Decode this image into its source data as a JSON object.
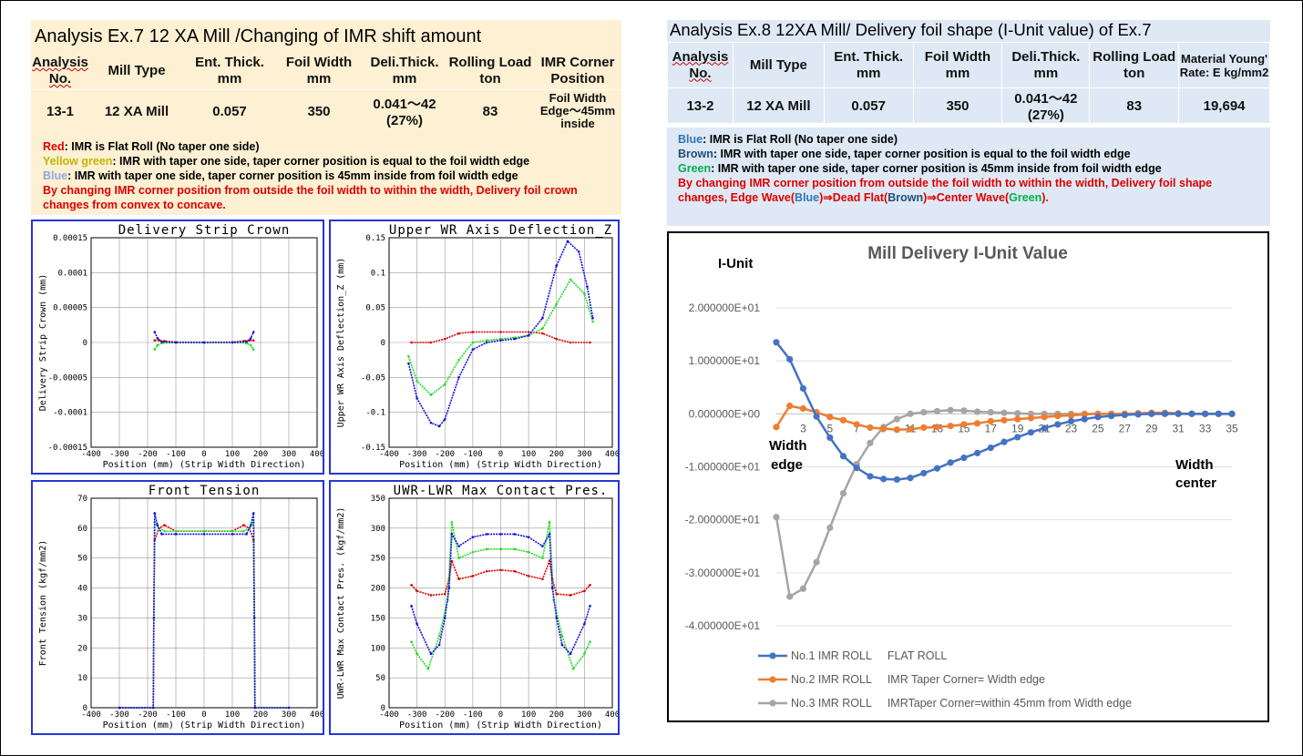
{
  "ex7": {
    "title": "Analysis Ex.7   12 XA Mill /Changing of IMR shift amount",
    "headers": [
      "Analysis No.",
      "Mill Type",
      "Ent. Thick. mm",
      "Foil Width mm",
      "Deli.Thick. mm",
      "Rolling Load ton",
      "IMR Corner Position"
    ],
    "row": [
      "13-1",
      "12 XA Mill",
      "0.057",
      "350",
      "0.041～42 (27%)",
      "83",
      "Foil Width Edge～45mm inside"
    ],
    "notes": [
      {
        "key": "Red",
        "text": ": IMR is Flat Roll (No taper one side)",
        "color": "#e00000"
      },
      {
        "key": "Yellow green",
        "text": ": IMR with taper one side, taper corner position is equal to the foil width edge",
        "color": "#c8b400"
      },
      {
        "key": "Blue",
        "text": ": IMR with taper one side, taper corner position is 45mm inside from foil width edge",
        "color": "#8ea9db"
      }
    ],
    "conclusion": "By changing IMR corner position from outside the foil width to within the width, Delivery foil crown changes from convex to concave."
  },
  "ex8": {
    "title": "Analysis Ex.8  12XA Mill/ Delivery foil shape (I-Unit value) of Ex.7",
    "headers": [
      "Analysis No.",
      "Mill Type",
      "Ent. Thick. mm",
      "Foil Width mm",
      "Deli.Thick. mm",
      "Rolling Load ton",
      "Material Young' Rate: E kg/mm2"
    ],
    "row": [
      "13-2",
      "12 XA Mill",
      "0.057",
      "350",
      "0.041～42 (27%)",
      "83",
      "19,694"
    ],
    "notes": [
      {
        "key": "Blue",
        "text": ": IMR is Flat Roll (No taper one side)",
        "color": "#2e75b6"
      },
      {
        "key": "Brown",
        "text": ": IMR with taper one side, taper corner position is equal to the foil width edge",
        "color": "#1f4e79"
      },
      {
        "key": "Green",
        "text": ": IMR with taper one side, taper corner position is 45mm inside from foil width edge",
        "color": "#00b050"
      }
    ],
    "conclusion_a": "By changing IMR corner position from outside the foil width to within the width, Delivery foil shape changes, Edge Wave(",
    "conclusion_parts": [
      "Blue",
      ")⇒Dead Flat(",
      "Brown",
      ")⇒Center Wave(",
      "Green",
      ")."
    ]
  },
  "chart_data": [
    {
      "type": "line",
      "title": "Delivery Strip Crown",
      "xlabel": "Position (mm) (Strip Width Direction)",
      "ylabel": "Delivery Strip Crown (mm)",
      "xlim": [
        -400,
        400
      ],
      "ylim": [
        -0.00015,
        0.00015
      ],
      "xticks": [
        -400,
        -300,
        -200,
        -100,
        0,
        100,
        200,
        300,
        400
      ],
      "yticks": [
        "0.00015",
        "0.0001",
        "0.00005",
        "0",
        "-0.00005",
        "-0.0001",
        "-0.00015"
      ],
      "series": [
        {
          "color": "#e00000",
          "x": [
            -175,
            -160,
            -140,
            -100,
            0,
            100,
            140,
            160,
            175
          ],
          "y": [
            3e-06,
            3e-06,
            2e-06,
            5e-07,
            0,
            5e-07,
            2e-06,
            3e-06,
            3e-06
          ]
        },
        {
          "color": "#22dd22",
          "x": [
            -175,
            -165,
            -150,
            -100,
            0,
            100,
            150,
            165,
            175
          ],
          "y": [
            -1e-05,
            -4e-06,
            -1e-06,
            0,
            0,
            0,
            -1e-06,
            -4e-06,
            -1e-05
          ]
        },
        {
          "color": "#1010e0",
          "x": [
            -175,
            -165,
            -150,
            -100,
            0,
            100,
            150,
            165,
            175
          ],
          "y": [
            1.5e-05,
            6e-06,
            1e-06,
            0,
            0,
            0,
            1e-06,
            6e-06,
            1.5e-05
          ]
        }
      ]
    },
    {
      "type": "line",
      "title": "Upper WR Axis Deflection_Z",
      "xlabel": "Position (mm) (Strip Width Direction)",
      "ylabel": "Upper WR Axis Deflection_Z (mm)",
      "xlim": [
        -400,
        400
      ],
      "ylim": [
        -0.15,
        0.15
      ],
      "xticks": [
        -400,
        -300,
        -200,
        -100,
        0,
        100,
        200,
        300,
        400
      ],
      "yticks": [
        "0.15",
        "0.1",
        "0.05",
        "0",
        "-0.05",
        "-0.1",
        "-0.15"
      ],
      "series": [
        {
          "color": "#e00000",
          "x": [
            -320,
            -250,
            -200,
            -150,
            -100,
            0,
            100,
            150,
            200,
            250,
            320
          ],
          "y": [
            0,
            0,
            0.005,
            0.013,
            0.015,
            0.015,
            0.015,
            0.013,
            0.005,
            0,
            0
          ]
        },
        {
          "color": "#22dd22",
          "x": [
            -330,
            -300,
            -250,
            -200,
            -150,
            -100,
            -50,
            0,
            50,
            100,
            150,
            200,
            250,
            300,
            330
          ],
          "y": [
            -0.02,
            -0.055,
            -0.075,
            -0.06,
            -0.025,
            0,
            0.003,
            0.005,
            0.007,
            0.01,
            0.02,
            0.055,
            0.09,
            0.07,
            0.03
          ]
        },
        {
          "color": "#1010e0",
          "x": [
            -330,
            -300,
            -250,
            -220,
            -200,
            -150,
            -100,
            -50,
            0,
            50,
            100,
            150,
            200,
            240,
            280,
            310,
            330
          ],
          "y": [
            -0.03,
            -0.08,
            -0.115,
            -0.12,
            -0.11,
            -0.05,
            -0.01,
            0,
            0.003,
            0.005,
            0.01,
            0.035,
            0.11,
            0.145,
            0.13,
            0.08,
            0.035
          ]
        }
      ]
    },
    {
      "type": "line",
      "title": "Front Tension",
      "xlabel": "Position (mm) (Strip Width Direction)",
      "ylabel": "Front Tension (kgf/mm2)",
      "xlim": [
        -400,
        400
      ],
      "ylim": [
        0,
        70
      ],
      "xticks": [
        -400,
        -300,
        -200,
        -100,
        0,
        100,
        200,
        300,
        400
      ],
      "yticks": [
        "70",
        "60",
        "50",
        "40",
        "30",
        "20",
        "10",
        "0"
      ],
      "series": [
        {
          "color": "#e00000",
          "x": [
            -300,
            -180,
            -178,
            -175,
            -160,
            -140,
            -100,
            0,
            100,
            140,
            160,
            175,
            178,
            180,
            300
          ],
          "y": [
            0,
            0,
            30,
            56,
            60,
            61,
            59,
            59,
            59,
            61,
            60,
            56,
            30,
            0,
            0
          ]
        },
        {
          "color": "#22dd22",
          "x": [
            -300,
            -180,
            -178,
            -175,
            -160,
            -140,
            -100,
            0,
            100,
            140,
            160,
            175,
            178,
            180,
            300
          ],
          "y": [
            0,
            0,
            30,
            62,
            60,
            59,
            59,
            59,
            59,
            59,
            60,
            62,
            30,
            0,
            0
          ]
        },
        {
          "color": "#1010e0",
          "x": [
            -300,
            -180,
            -178,
            -175,
            -165,
            -150,
            -100,
            0,
            100,
            150,
            165,
            175,
            178,
            180,
            300
          ],
          "y": [
            0,
            0,
            30,
            65,
            61,
            58,
            58,
            58,
            58,
            58,
            61,
            65,
            30,
            0,
            0
          ]
        }
      ]
    },
    {
      "type": "line",
      "title": "UWR-LWR Max Contact Pres.",
      "xlabel": "Position (mm) (Strip Width Direction)",
      "ylabel": "UWR-LWR Max Contact Pres. (kgf/mm2)",
      "xlim": [
        -400,
        400
      ],
      "ylim": [
        0,
        350
      ],
      "xticks": [
        -400,
        -300,
        -200,
        -100,
        0,
        100,
        200,
        300,
        400
      ],
      "yticks": [
        "350",
        "300",
        "250",
        "200",
        "150",
        "100",
        "50",
        "0"
      ],
      "series": [
        {
          "color": "#e00000",
          "x": [
            -320,
            -300,
            -250,
            -200,
            -185,
            -175,
            -150,
            -100,
            -50,
            0,
            50,
            100,
            150,
            175,
            185,
            200,
            250,
            300,
            320
          ],
          "y": [
            205,
            195,
            188,
            190,
            215,
            245,
            215,
            220,
            228,
            230,
            228,
            220,
            215,
            245,
            215,
            190,
            188,
            195,
            205
          ]
        },
        {
          "color": "#22dd22",
          "x": [
            -320,
            -300,
            -260,
            -220,
            -190,
            -175,
            -150,
            -100,
            -50,
            0,
            50,
            100,
            150,
            175,
            190,
            220,
            260,
            300,
            320
          ],
          "y": [
            110,
            90,
            65,
            120,
            180,
            310,
            250,
            260,
            265,
            265,
            265,
            260,
            250,
            310,
            180,
            120,
            65,
            90,
            110
          ]
        },
        {
          "color": "#1010e0",
          "x": [
            -320,
            -300,
            -250,
            -220,
            -200,
            -185,
            -175,
            -150,
            -100,
            -50,
            0,
            50,
            100,
            150,
            175,
            185,
            200,
            220,
            250,
            300,
            320
          ],
          "y": [
            170,
            140,
            90,
            105,
            150,
            200,
            290,
            270,
            285,
            290,
            290,
            290,
            285,
            270,
            290,
            200,
            150,
            105,
            90,
            140,
            170
          ]
        }
      ]
    },
    {
      "type": "line",
      "title": "Mill Delivery I-Unit Value",
      "ylabel": "I-Unit",
      "annotations": [
        "Width edge",
        "Width center"
      ],
      "ylim": [
        -40,
        20
      ],
      "yticks": [
        "2.000000E+01",
        "1.000000E+01",
        "0.000000E+00",
        "-1.000000E+01",
        "-2.000000E+01",
        "-3.000000E+01",
        "-4.000000E+01"
      ],
      "xticks": [
        "3",
        "5",
        "7",
        "9",
        "11",
        "13",
        "15",
        "17",
        "19",
        "21",
        "23",
        "25",
        "27",
        "29",
        "31",
        "33",
        "35"
      ],
      "x": [
        1,
        2,
        3,
        4,
        5,
        6,
        7,
        8,
        9,
        10,
        11,
        12,
        13,
        14,
        15,
        16,
        17,
        18,
        19,
        20,
        21,
        22,
        23,
        24,
        25,
        26,
        27,
        28,
        29,
        30,
        31,
        32,
        33,
        34,
        35
      ],
      "series": [
        {
          "name": "No.1 IMR ROLL     FLAT ROLL",
          "color": "#4472c4",
          "y": [
            13.5,
            10.3,
            4.8,
            -0.5,
            -4.5,
            -8,
            -10.2,
            -11.8,
            -12.3,
            -12.4,
            -12.1,
            -11.2,
            -10.3,
            -9.2,
            -8.3,
            -7.4,
            -6.4,
            -5.3,
            -4.4,
            -3.5,
            -2.7,
            -2,
            -1.4,
            -1,
            -0.6,
            -0.4,
            -0.2,
            -0.1,
            0,
            0,
            0,
            0,
            0,
            0,
            0
          ]
        },
        {
          "name": "No.2 IMR ROLL     IMR Taper Corner= Width edge",
          "color": "#ed7d31",
          "y": [
            -2.5,
            1.5,
            1,
            0.3,
            -0.6,
            -1.2,
            -2,
            -2.6,
            -2.8,
            -3,
            -2.9,
            -2.6,
            -2.5,
            -2.3,
            -2,
            -1.8,
            -1.4,
            -1.2,
            -1,
            -0.8,
            -0.6,
            -0.4,
            -0.3,
            -0.1,
            0,
            0,
            0,
            0.1,
            0.2,
            0.2,
            0.1,
            0,
            0,
            0,
            0
          ]
        },
        {
          "name": "No.3 IMR ROLL     IMRTaper Corner=within 45mm from Width edge",
          "color": "#a5a5a5",
          "y": [
            -19.5,
            -34.5,
            -33,
            -28,
            -21.5,
            -15,
            -9.5,
            -5.5,
            -2.5,
            -1,
            0,
            0.3,
            0.5,
            0.7,
            0.6,
            0.4,
            0.3,
            0.2,
            0.1,
            0,
            0,
            0,
            0,
            0,
            0,
            0,
            0,
            0,
            0,
            0,
            0,
            0,
            0,
            0,
            0
          ]
        }
      ]
    }
  ]
}
